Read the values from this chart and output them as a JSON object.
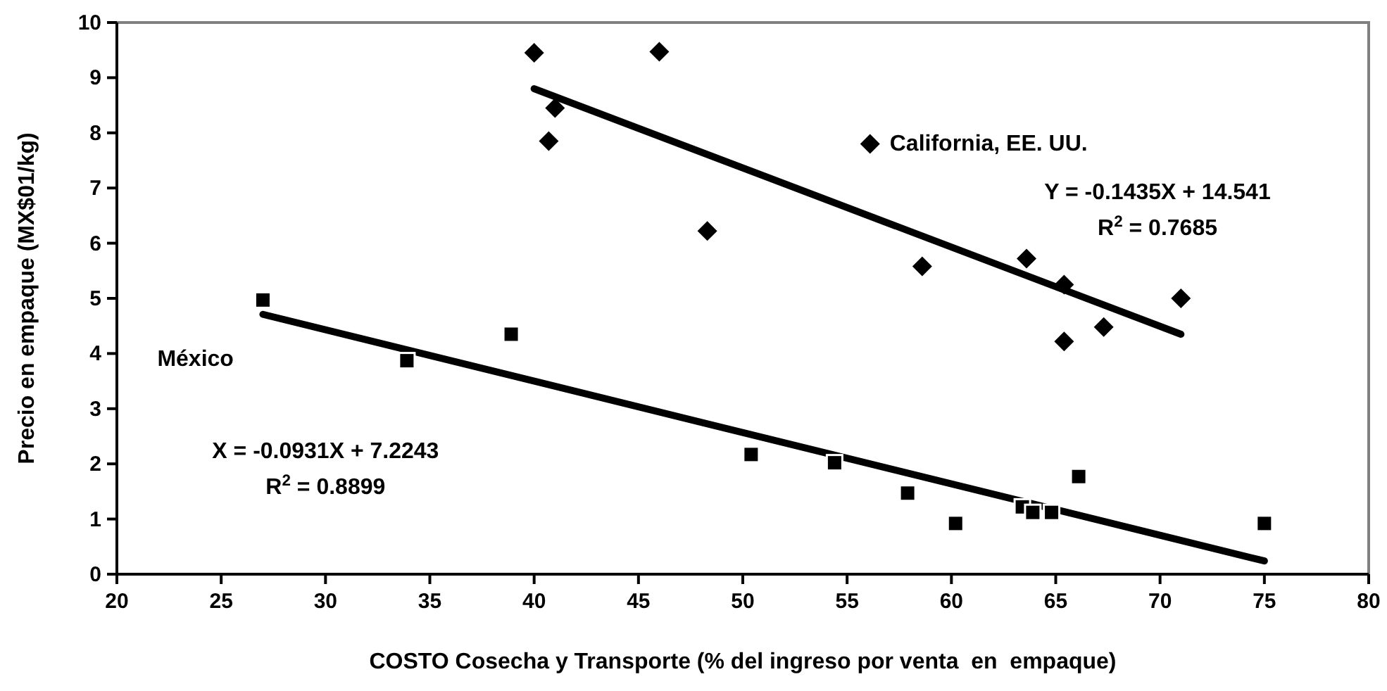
{
  "chart_data": {
    "type": "scatter",
    "xlabel": "COSTO Cosecha y Transporte (% del ingreso por venta  en  empaque)",
    "ylabel": "Precio en empaque (MX$01/kg)",
    "xlim": [
      20,
      80
    ],
    "xticks": [
      20,
      25,
      30,
      35,
      40,
      45,
      50,
      55,
      60,
      65,
      70,
      75,
      80
    ],
    "ylim": [
      0,
      10
    ],
    "yticks": [
      0,
      1,
      2,
      3,
      4,
      5,
      6,
      7,
      8,
      9,
      10
    ],
    "grid": false,
    "series": [
      {
        "name": "California, EE. UU.",
        "marker": "diamond",
        "color": "#000000",
        "x": [
          40,
          46,
          41,
          40.7,
          48.3,
          56.1,
          58.6,
          63.6,
          65.4,
          65.4,
          67.3,
          71
        ],
        "values": [
          9.45,
          9.47,
          8.45,
          7.85,
          6.22,
          7.8,
          5.58,
          5.72,
          5.25,
          4.22,
          4.48,
          5.0
        ]
      },
      {
        "name": "México",
        "marker": "square",
        "color": "#000000",
        "x": [
          27,
          33.9,
          38.9,
          50.4,
          54.4,
          57.9,
          60.2,
          63.4,
          63.9,
          64.8,
          66.1,
          75
        ],
        "values": [
          4.97,
          3.87,
          4.35,
          2.17,
          2.02,
          1.47,
          0.92,
          1.22,
          1.12,
          1.12,
          1.77,
          0.92
        ]
      },
      {
        "type": "line",
        "line_style": "solid",
        "color": "#000000",
        "x": [
          40,
          71
        ],
        "values": [
          8.8,
          4.35
        ]
      },
      {
        "type": "line",
        "line_style": "solid",
        "color": "#000000",
        "x": [
          27,
          75
        ],
        "values": [
          4.71,
          0.24
        ]
      }
    ],
    "annotations": [
      "Y = -0.1435X + 14.541",
      "R$^{2}$ = 0.7685",
      "X = -0.0931X + 7.2243",
      "R$^{2}$ = 0.8899"
    ]
  }
}
